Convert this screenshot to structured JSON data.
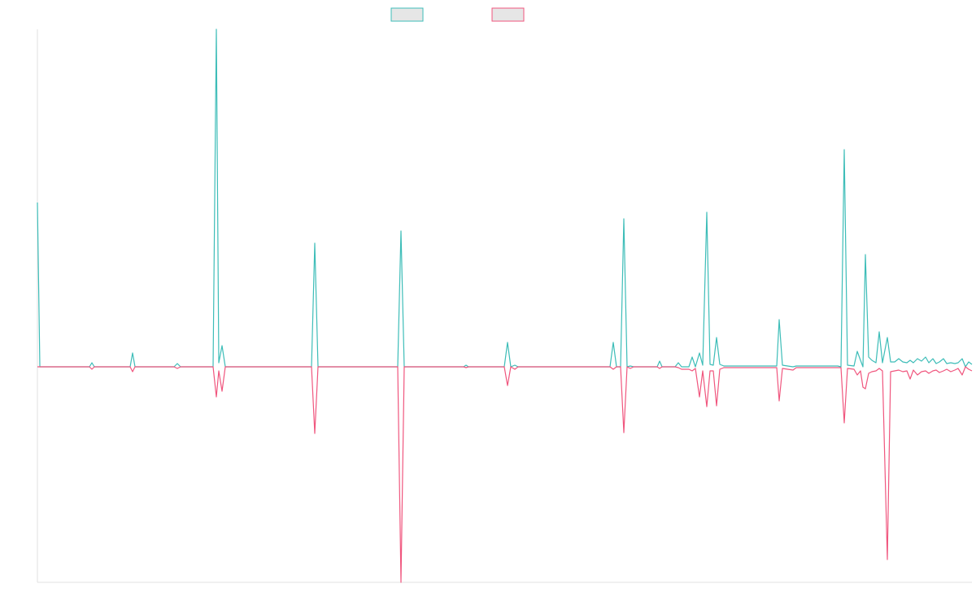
{
  "chart_data": {
    "type": "line",
    "x": [
      0,
      3,
      64,
      67,
      70,
      114,
      117,
      120,
      168,
      172,
      176,
      216,
      220,
      223,
      227,
      231,
      337,
      341,
      345,
      443,
      447,
      451,
      524,
      527,
      530,
      574,
      578,
      582,
      587,
      591,
      704,
      708,
      712,
      717,
      721,
      725,
      729,
      733,
      762,
      765,
      768,
      784,
      788,
      792,
      801,
      805,
      809,
      814,
      818,
      823,
      827,
      831,
      835,
      839,
      844,
      909,
      912,
      916,
      929,
      933,
      984,
      988,
      992,
      996,
      1004,
      1008,
      1012,
      1015,
      1018,
      1022,
      1026,
      1031,
      1035,
      1039,
      1045,
      1049,
      1054,
      1059,
      1064,
      1069,
      1073,
      1077,
      1082,
      1087,
      1092,
      1096,
      1101,
      1105,
      1109,
      1114,
      1118,
      1123,
      1128,
      1132,
      1137,
      1141,
      1145,
      1149
    ],
    "xlim": [
      0,
      1149
    ],
    "ylim": [
      -265,
      415
    ],
    "series": [
      {
        "color": "#3dbdb8",
        "values": [
          202,
          0,
          0,
          5,
          0,
          0,
          17,
          0,
          0,
          4,
          0,
          0,
          415,
          5,
          26,
          0,
          0,
          152,
          0,
          0,
          167,
          0,
          0,
          2,
          0,
          0,
          30,
          0,
          2,
          0,
          0,
          30,
          0,
          0,
          182,
          0,
          1,
          0,
          0,
          7,
          0,
          0,
          5,
          0,
          0,
          12,
          0,
          17,
          2,
          190,
          3,
          2,
          36,
          3,
          1,
          1,
          58,
          2,
          0,
          1,
          1,
          0,
          267,
          2,
          1,
          19,
          8,
          0,
          138,
          12,
          8,
          5,
          43,
          5,
          36,
          6,
          6,
          10,
          6,
          5,
          8,
          5,
          10,
          7,
          12,
          5,
          10,
          4,
          6,
          10,
          4,
          5,
          4,
          5,
          10,
          0,
          6,
          3
        ]
      },
      {
        "color": "#f0567e",
        "values": [
          0,
          0,
          0,
          -3,
          0,
          0,
          -6,
          0,
          0,
          -2,
          0,
          0,
          -37,
          -5,
          -30,
          0,
          0,
          -82,
          0,
          0,
          -265,
          0,
          0,
          -1,
          0,
          0,
          -23,
          0,
          -3,
          0,
          0,
          -3,
          0,
          0,
          -81,
          0,
          -2,
          0,
          0,
          -2,
          0,
          0,
          -1,
          -3,
          -3,
          -5,
          -2,
          -37,
          -5,
          -49,
          -5,
          -5,
          -48,
          -3,
          -1,
          -1,
          -42,
          -2,
          -4,
          -1,
          -1,
          -1,
          -69,
          -2,
          -3,
          -10,
          -5,
          -25,
          -27,
          -8,
          -6,
          -5,
          -2,
          -5,
          -237,
          -6,
          -5,
          -4,
          -6,
          -5,
          -15,
          -4,
          -10,
          -6,
          -5,
          -8,
          -5,
          -4,
          -7,
          -5,
          -3,
          -6,
          -4,
          -2,
          -10,
          0,
          -3,
          -5
        ]
      }
    ]
  }
}
